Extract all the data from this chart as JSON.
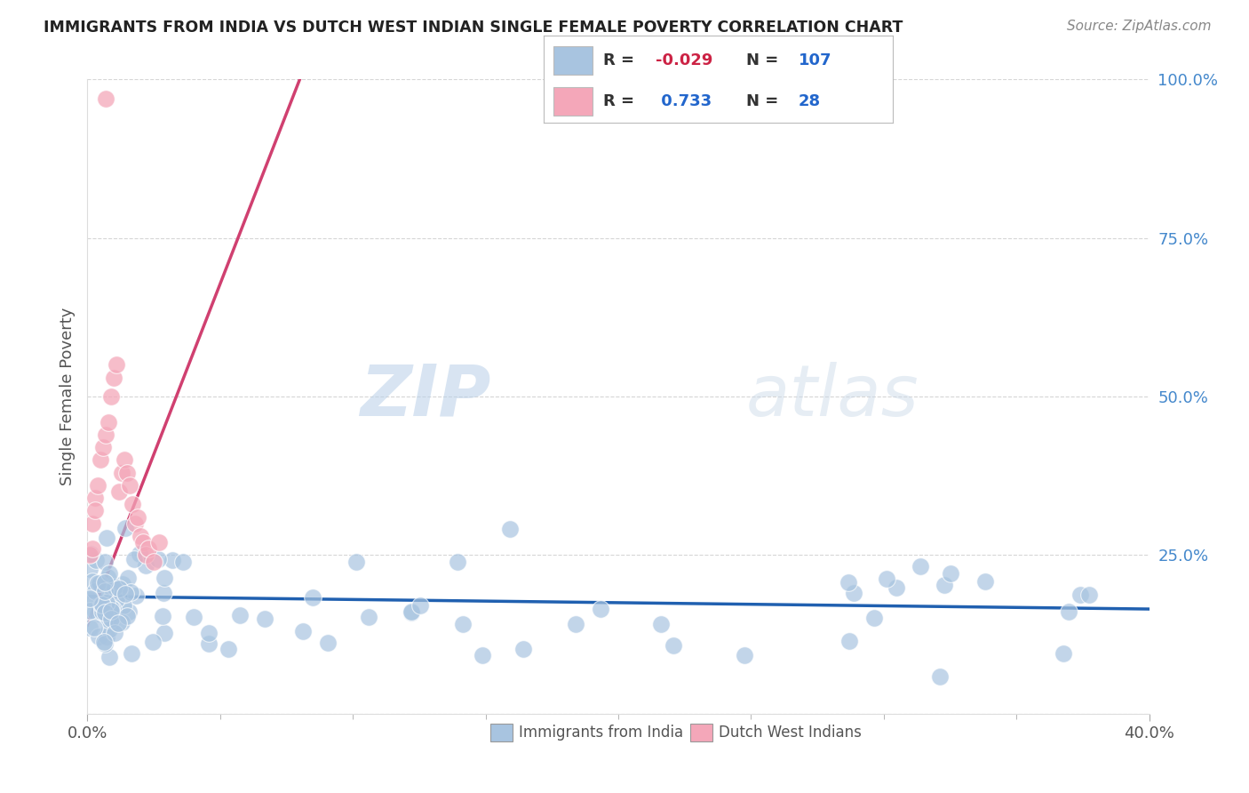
{
  "title": "IMMIGRANTS FROM INDIA VS DUTCH WEST INDIAN SINGLE FEMALE POVERTY CORRELATION CHART",
  "source": "Source: ZipAtlas.com",
  "ylabel": "Single Female Poverty",
  "R1": -0.029,
  "N1": 107,
  "R2": 0.733,
  "N2": 28,
  "color_india": "#a8c4e0",
  "color_dutch": "#f4a7b9",
  "color_india_line": "#2060b0",
  "color_dutch_line": "#d04070",
  "watermark_zip": "ZIP",
  "watermark_atlas": "atlas",
  "legend_label1": "Immigrants from India",
  "legend_label2": "Dutch West Indians",
  "background_color": "#ffffff",
  "grid_color": "#cccccc",
  "title_color": "#222222",
  "source_color": "#888888",
  "axis_label_color": "#555555",
  "yaxis_tick_color": "#4488cc",
  "xlim": [
    0,
    0.4
  ],
  "ylim": [
    0,
    1.0
  ]
}
